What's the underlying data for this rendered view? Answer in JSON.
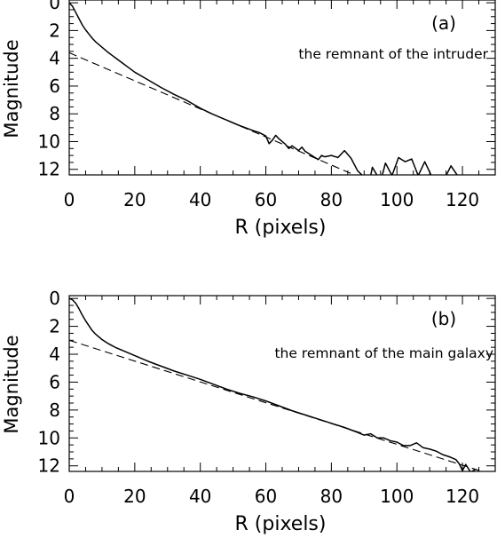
{
  "chart_data": [
    {
      "type": "line",
      "panel_label": "(a)",
      "annotation": "the remnant of the intruder",
      "xlabel": "R (pixels)",
      "ylabel": "Magnitude",
      "xlim": [
        0,
        130
      ],
      "ylim": [
        12.4,
        -0.2
      ],
      "xticks": [
        0,
        20,
        40,
        60,
        80,
        100,
        120
      ],
      "yticks": [
        0,
        2,
        4,
        6,
        8,
        10,
        12
      ],
      "series": [
        {
          "style": "solid",
          "x": [
            0,
            1,
            2,
            3,
            4,
            5,
            6,
            7,
            8,
            10,
            12,
            14,
            16,
            18,
            20,
            24,
            28,
            32,
            36,
            40,
            44,
            48,
            52,
            56,
            58,
            60,
            61,
            62,
            63,
            64,
            66,
            67,
            68,
            70,
            71,
            72,
            74,
            76,
            77,
            78,
            80,
            82,
            84,
            86,
            88,
            89.5,
            92,
            92.5,
            94,
            95.5,
            96.5,
            98.5,
            100.5,
            102.5,
            104.5,
            106.5,
            108.5,
            110.5,
            115,
            116.5,
            118.5
          ],
          "y": [
            0,
            0.25,
            0.7,
            1.15,
            1.6,
            1.95,
            2.25,
            2.55,
            2.8,
            3.2,
            3.6,
            3.95,
            4.3,
            4.65,
            5.0,
            5.55,
            6.1,
            6.6,
            7.05,
            7.6,
            8.05,
            8.45,
            8.85,
            9.2,
            9.35,
            9.6,
            10.15,
            9.9,
            9.55,
            9.8,
            10.2,
            10.5,
            10.3,
            10.65,
            10.4,
            10.7,
            11.0,
            11.3,
            11.0,
            11.1,
            11.0,
            11.15,
            10.65,
            11.2,
            12.1,
            12.45,
            12.45,
            11.85,
            12.45,
            12.45,
            11.55,
            12.45,
            11.15,
            11.45,
            11.25,
            12.45,
            11.45,
            12.45,
            12.45,
            11.75,
            12.45
          ]
        },
        {
          "style": "dashed",
          "x": [
            0,
            87
          ],
          "y": [
            3.6,
            12.4
          ]
        }
      ]
    },
    {
      "type": "line",
      "panel_label": "(b)",
      "annotation": "the remnant of the main galaxy",
      "xlabel": "R (pixels)",
      "ylabel": "Magnitude",
      "xlim": [
        0,
        130
      ],
      "ylim": [
        12.4,
        -0.2
      ],
      "xticks": [
        0,
        20,
        40,
        60,
        80,
        100,
        120
      ],
      "yticks": [
        0,
        2,
        4,
        6,
        8,
        10,
        12
      ],
      "series": [
        {
          "style": "solid",
          "x": [
            0,
            1,
            2,
            3,
            4,
            5,
            6,
            7,
            8,
            10,
            12,
            14,
            16,
            20,
            24,
            28,
            32,
            36,
            40,
            44,
            48,
            52,
            56,
            60,
            64,
            68,
            72,
            76,
            80,
            84,
            88,
            90,
            92,
            94,
            96,
            98,
            100,
            102,
            104,
            106,
            108,
            110,
            112,
            114,
            116,
            118,
            119,
            120,
            121,
            122.5,
            124
          ],
          "y": [
            0,
            0.1,
            0.35,
            0.75,
            1.2,
            1.6,
            1.95,
            2.3,
            2.55,
            2.95,
            3.25,
            3.5,
            3.7,
            4.1,
            4.5,
            4.85,
            5.2,
            5.5,
            5.8,
            6.15,
            6.5,
            6.8,
            7.05,
            7.35,
            7.7,
            8.05,
            8.35,
            8.65,
            8.95,
            9.25,
            9.6,
            9.8,
            9.7,
            10.0,
            10.0,
            10.2,
            10.3,
            10.55,
            10.55,
            10.35,
            10.7,
            10.8,
            10.95,
            11.2,
            11.35,
            11.55,
            11.85,
            12.35,
            11.9,
            12.45,
            12.25
          ]
        },
        {
          "style": "dashed",
          "x": [
            0,
            126
          ],
          "y": [
            3.0,
            12.4
          ]
        }
      ]
    }
  ]
}
